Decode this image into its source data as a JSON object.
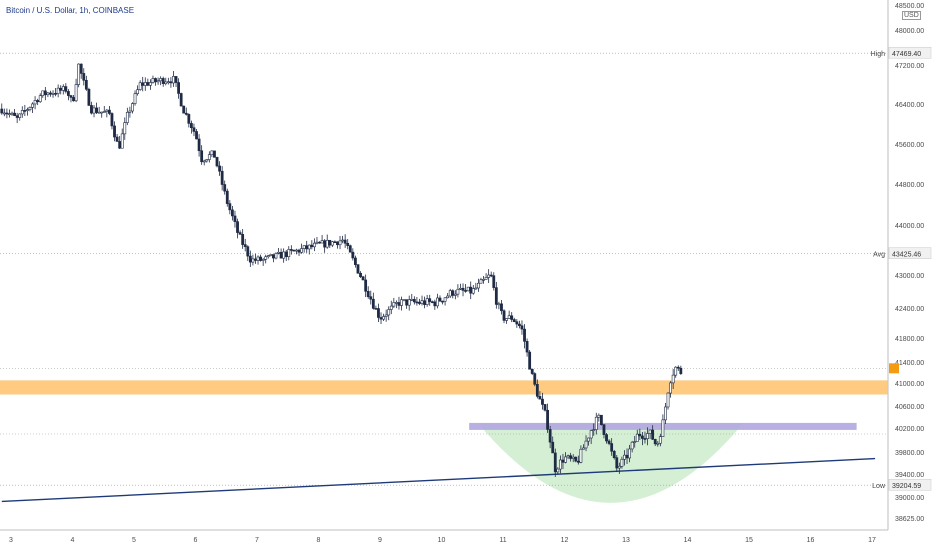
{
  "chart_data": {
    "type": "candlestick",
    "title": "Bitcoin / U.S. Dollar, 1h, COINBASE",
    "unit": "USD",
    "ylim": [
      38500,
      48500
    ],
    "xlim": [
      2.85,
      17.05
    ],
    "y_ticks": [
      48500,
      48000,
      47200,
      46400,
      45600,
      44800,
      44000,
      43000,
      42400,
      41800,
      41400,
      41000,
      40600,
      40200,
      39800,
      39400,
      39000,
      38625
    ],
    "y_tick_labels": [
      "48500.00",
      "48000.00",
      "47200.00",
      "46400.00",
      "45600.00",
      "44800.00",
      "44000.00",
      "43000.00",
      "42400.00",
      "41800.00",
      "41400.00",
      "41000.00",
      "40600.00",
      "40200.00",
      "39800.00",
      "39400.00",
      "39000.00",
      "38625.00"
    ],
    "x_ticks": [
      3,
      4,
      5,
      6,
      7,
      8,
      9,
      10,
      11,
      12,
      13,
      14,
      15,
      16,
      17
    ],
    "x_tick_labels": [
      "3",
      "4",
      "5",
      "6",
      "7",
      "8",
      "9",
      "10",
      "11",
      "12",
      "13",
      "14",
      "15",
      "16",
      "17"
    ],
    "reference_lines": [
      {
        "label": "High",
        "value": 47469.4,
        "value_label": "47469.40"
      },
      {
        "label": "Avg",
        "value": 43425.46,
        "value_label": "43425.46"
      },
      {
        "label": "Low",
        "value": 39204.59,
        "value_label": "39204.59"
      }
    ],
    "current_price": 41280,
    "price_path": [
      [
        2.85,
        46300
      ],
      [
        3.1,
        46100
      ],
      [
        3.5,
        46600
      ],
      [
        3.9,
        46700
      ],
      [
        4.0,
        46400
      ],
      [
        4.1,
        47200
      ],
      [
        4.3,
        46300
      ],
      [
        4.6,
        46200
      ],
      [
        4.75,
        45500
      ],
      [
        4.9,
        46200
      ],
      [
        5.1,
        46800
      ],
      [
        5.5,
        46900
      ],
      [
        5.65,
        46900
      ],
      [
        5.8,
        46300
      ],
      [
        6.0,
        45800
      ],
      [
        6.1,
        45300
      ],
      [
        6.3,
        45400
      ],
      [
        6.5,
        44500
      ],
      [
        6.7,
        43800
      ],
      [
        6.9,
        43300
      ],
      [
        7.1,
        43300
      ],
      [
        7.4,
        43400
      ],
      [
        7.7,
        43500
      ],
      [
        8.0,
        43600
      ],
      [
        8.4,
        43700
      ],
      [
        8.6,
        43200
      ],
      [
        8.8,
        42700
      ],
      [
        9.0,
        42200
      ],
      [
        9.3,
        42500
      ],
      [
        9.6,
        42500
      ],
      [
        9.9,
        42500
      ],
      [
        10.2,
        42700
      ],
      [
        10.5,
        42700
      ],
      [
        10.8,
        43000
      ],
      [
        10.9,
        42500
      ],
      [
        11.0,
        42200
      ],
      [
        11.15,
        42200
      ],
      [
        11.3,
        42000
      ],
      [
        11.5,
        41000
      ],
      [
        11.7,
        40400
      ],
      [
        11.85,
        39500
      ],
      [
        12.0,
        39700
      ],
      [
        12.2,
        39600
      ],
      [
        12.4,
        40100
      ],
      [
        12.55,
        40400
      ],
      [
        12.7,
        40000
      ],
      [
        12.85,
        39500
      ],
      [
        13.0,
        39700
      ],
      [
        13.2,
        40100
      ],
      [
        13.4,
        40100
      ],
      [
        13.5,
        39900
      ],
      [
        13.6,
        40300
      ],
      [
        13.7,
        41000
      ],
      [
        13.8,
        41300
      ],
      [
        13.9,
        41200
      ]
    ],
    "zones": [
      {
        "type": "resistance",
        "from": 40800,
        "to": 41050,
        "color": "#fec26b"
      },
      {
        "type": "support",
        "level": 40220,
        "x_from": 10.45,
        "x_to": 16.75,
        "color": "#b3a6e0"
      }
    ],
    "trendline": {
      "x1": 2.85,
      "y1": 38920,
      "x2": 17.05,
      "y2": 39680,
      "color": "#1e3a78"
    },
    "cup": {
      "x_from": 10.6,
      "x_to": 14.9,
      "top": 40280,
      "bottom": 38930,
      "color": "#cdeccb"
    }
  }
}
